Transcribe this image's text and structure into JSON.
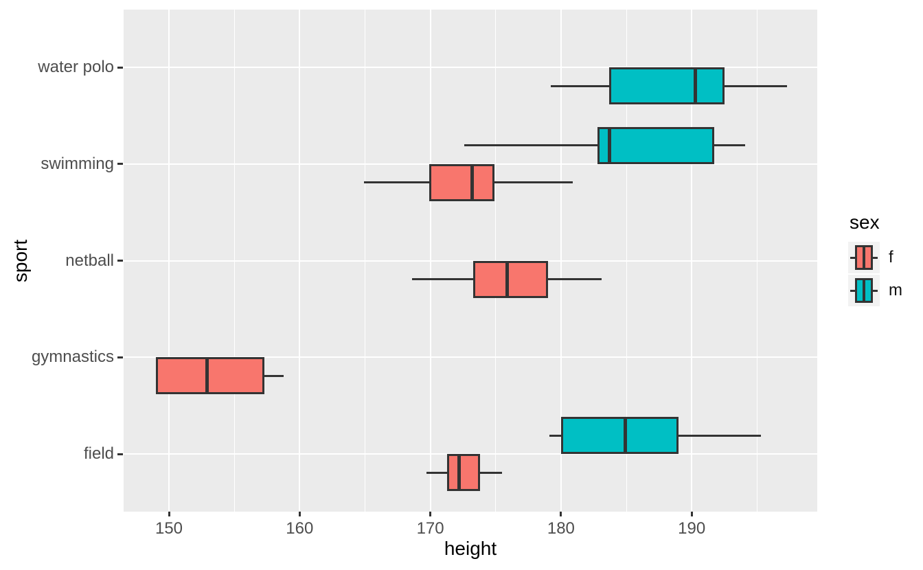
{
  "legend": {
    "title": "sex",
    "items": [
      {
        "label": "f",
        "color": "#F8766D"
      },
      {
        "label": "m",
        "color": "#00BFC4"
      }
    ]
  },
  "colors": {
    "female": "#F8766D",
    "male": "#00BFC4",
    "panel_bg": "#EBEBEB",
    "grid": "#FFFFFF",
    "box_border": "#333333",
    "axis_text": "#4D4D4D",
    "title_text": "#000000",
    "legend_key_bg": "#F2F2F2",
    "background": "#FFFFFF"
  },
  "chart_data": {
    "type": "boxplot",
    "orientation": "horizontal",
    "title": "",
    "xlabel": "height",
    "ylabel": "sport",
    "x_ticks": [
      150,
      160,
      170,
      180,
      190
    ],
    "x_minor_ticks": [
      155,
      165,
      175,
      185,
      195
    ],
    "x_range": [
      146.5,
      199.6
    ],
    "categories": [
      "water polo",
      "swimming",
      "netball",
      "gymnastics",
      "field"
    ],
    "groups": [
      "f",
      "m"
    ],
    "legend_position": "right",
    "grid": "major-and-minor-x, major-y, white on grey panel",
    "boxes": [
      {
        "sport": "water polo",
        "sex": "m",
        "whisker_low": 179.2,
        "q1": 183.7,
        "median": 190.3,
        "q3": 192.5,
        "whisker_high": 197.3,
        "slot": "below"
      },
      {
        "sport": "swimming",
        "sex": "m",
        "whisker_low": 172.6,
        "q1": 182.8,
        "median": 183.7,
        "q3": 191.7,
        "whisker_high": 194.1,
        "slot": "above"
      },
      {
        "sport": "swimming",
        "sex": "f",
        "whisker_low": 164.9,
        "q1": 169.9,
        "median": 173.2,
        "q3": 174.9,
        "whisker_high": 180.9,
        "slot": "below"
      },
      {
        "sport": "netball",
        "sex": "f",
        "whisker_low": 168.6,
        "q1": 173.3,
        "median": 175.9,
        "q3": 179.0,
        "whisker_high": 183.1,
        "slot": "below"
      },
      {
        "sport": "gymnastics",
        "sex": "f",
        "whisker_low": 149.0,
        "q1": 149.0,
        "median": 152.9,
        "q3": 157.3,
        "whisker_high": 158.8,
        "slot": "below"
      },
      {
        "sport": "field",
        "sex": "m",
        "whisker_low": 179.1,
        "q1": 180.0,
        "median": 184.9,
        "q3": 189.0,
        "whisker_high": 195.3,
        "slot": "above"
      },
      {
        "sport": "field",
        "sex": "f",
        "whisker_low": 169.7,
        "q1": 171.3,
        "median": 172.2,
        "q3": 173.8,
        "whisker_high": 175.5,
        "slot": "below"
      }
    ]
  }
}
